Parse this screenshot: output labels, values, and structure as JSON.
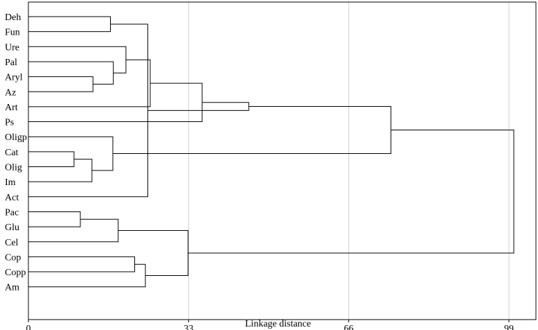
{
  "chart_data": {
    "type": "dendrogram",
    "orientation": "horizontal",
    "xlabel": "Linkage distance",
    "xlim": [
      0,
      100
    ],
    "xticks": [
      0,
      33,
      66,
      99
    ],
    "grid": true,
    "leaves": [
      "Deh",
      "Fun",
      "Ure",
      "Pal",
      "Aryl",
      "Az",
      "Art",
      "Ps",
      "Oligp",
      "Cat",
      "Olig",
      "Im",
      "Act",
      "Pac",
      "Glu",
      "Cel",
      "Cop",
      "Copp",
      "Am"
    ],
    "merges": [
      {
        "a": "L9",
        "b": "L10",
        "height": 9.4
      },
      {
        "a": "L11",
        "b": "N0",
        "height": 13.1
      },
      {
        "a": "L8",
        "b": "N1",
        "height": 17.4
      },
      {
        "a": "L4",
        "b": "L5",
        "height": 13.3
      },
      {
        "a": "L3",
        "b": "N3",
        "height": 17.5
      },
      {
        "a": "L2",
        "b": "N4",
        "height": 20.1
      },
      {
        "a": "L6",
        "b": "N5",
        "height": 25.1
      },
      {
        "a": "N6",
        "b": "L7",
        "height": 35.8
      },
      {
        "a": "L0",
        "b": "L1",
        "height": 16.9
      },
      {
        "a": "N8",
        "b": "L12",
        "height": 24.6
      },
      {
        "a": "N9",
        "b": "N7",
        "height": 45.4
      },
      {
        "a": "N10",
        "b": "N2",
        "height": 74.7
      },
      {
        "a": "L14",
        "b": "L13",
        "height": 10.7
      },
      {
        "a": "L15",
        "b": "N12",
        "height": 18.5
      },
      {
        "a": "L17",
        "b": "L16",
        "height": 21.9
      },
      {
        "a": "N14",
        "b": "L18",
        "height": 24.1
      },
      {
        "a": "N13",
        "b": "N15",
        "height": 32.9
      },
      {
        "a": "N11",
        "b": "N16",
        "height": 100.0
      }
    ]
  }
}
